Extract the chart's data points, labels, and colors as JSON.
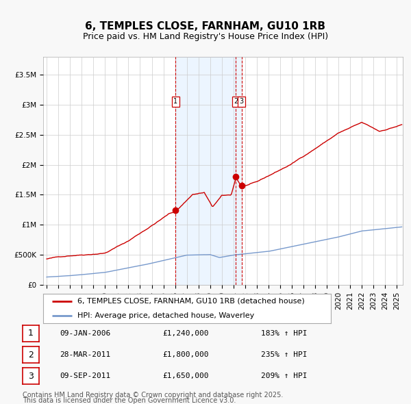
{
  "title": "6, TEMPLES CLOSE, FARNHAM, GU10 1RB",
  "subtitle": "Price paid vs. HM Land Registry's House Price Index (HPI)",
  "background_color": "#f8f8f8",
  "plot_bg_color": "#ffffff",
  "shade_color": "#ddeeff",
  "grid_color": "#cccccc",
  "red_line_color": "#cc0000",
  "blue_line_color": "#7799cc",
  "sale_marker_color": "#cc0000",
  "dashed_line_color": "#cc0000",
  "yticks": [
    0,
    500000,
    1000000,
    1500000,
    2000000,
    2500000,
    3000000,
    3500000
  ],
  "ytick_labels": [
    "£0",
    "£500K",
    "£1M",
    "£1.5M",
    "£2M",
    "£2.5M",
    "£3M",
    "£3.5M"
  ],
  "ylim": [
    0,
    3800000
  ],
  "xlim_start": 1994.7,
  "xlim_end": 2025.5,
  "sale_dates": [
    2006.04,
    2011.21,
    2011.69
  ],
  "sale_prices": [
    1240000,
    1800000,
    1650000
  ],
  "sale_labels": [
    "1",
    "2",
    "3"
  ],
  "sale_date_strs": [
    "09-JAN-2006",
    "28-MAR-2011",
    "09-SEP-2011"
  ],
  "sale_price_strs": [
    "£1,240,000",
    "£1,800,000",
    "£1,650,000"
  ],
  "sale_pct_strs": [
    "183% ↑ HPI",
    "235% ↑ HPI",
    "209% ↑ HPI"
  ],
  "legend_red_label": "6, TEMPLES CLOSE, FARNHAM, GU10 1RB (detached house)",
  "legend_blue_label": "HPI: Average price, detached house, Waverley",
  "footer_line1": "Contains HM Land Registry data © Crown copyright and database right 2025.",
  "footer_line2": "This data is licensed under the Open Government Licence v3.0.",
  "title_fontsize": 11,
  "subtitle_fontsize": 9,
  "tick_fontsize": 7.5,
  "legend_fontsize": 8,
  "footer_fontsize": 7,
  "table_fontsize": 8
}
